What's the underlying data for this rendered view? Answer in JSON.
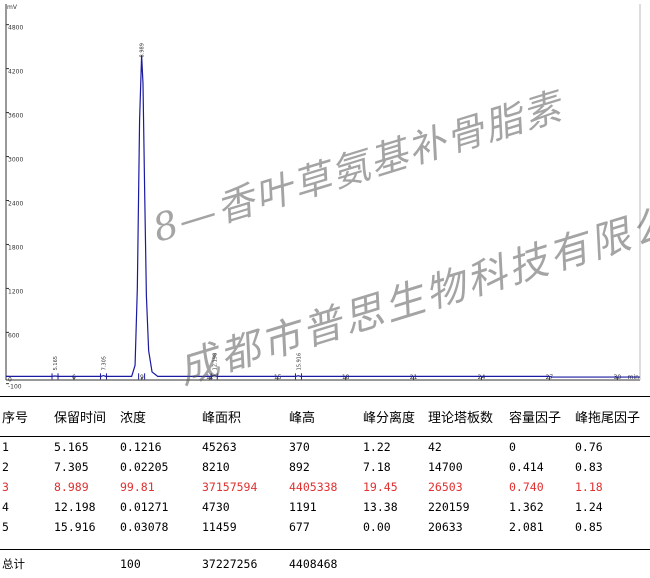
{
  "chart_data": {
    "type": "line",
    "title": "",
    "ylabel": "mV",
    "xlabel": "min",
    "xlim": [
      3,
      31
    ],
    "ylim": [
      -50,
      5000
    ],
    "x_ticks": [
      "6",
      "9",
      "12",
      "15",
      "18",
      "21",
      "24",
      "27",
      "30"
    ],
    "y_ticks": [
      "-100",
      "0",
      "600",
      "1200",
      "1800",
      "2400",
      "3000",
      "3600",
      "4200",
      "4800"
    ],
    "y_tick_values": [
      -100,
      0,
      600,
      1200,
      1800,
      2400,
      3000,
      3600,
      4200,
      4800
    ],
    "peaks": [
      {
        "label": "5.165",
        "rt": 5.165,
        "height": 370
      },
      {
        "label": "7.305",
        "rt": 7.305,
        "height": 892
      },
      {
        "label": "8.989",
        "rt": 8.989,
        "height": 4405338
      },
      {
        "label": "12.198",
        "rt": 12.198,
        "height": 1191
      },
      {
        "label": "15.916",
        "rt": 15.916,
        "height": 677
      }
    ],
    "series": [
      {
        "x": [
          3.0,
          5.0,
          5.165,
          5.3,
          7.2,
          7.305,
          7.4,
          8.55,
          8.7,
          8.8,
          8.9,
          8.989,
          9.05,
          9.12,
          9.2,
          9.3,
          9.45,
          9.7,
          12.1,
          12.198,
          12.3,
          15.8,
          15.916,
          16.0,
          27.0,
          27.1,
          31.0
        ],
        "y": [
          0,
          0,
          5,
          0,
          0,
          10,
          0,
          0,
          150,
          1200,
          3500,
          4380,
          4000,
          2600,
          1100,
          350,
          60,
          0,
          0,
          15,
          0,
          0,
          8,
          0,
          0,
          -10,
          -10
        ]
      }
    ],
    "grid": false,
    "legend": "none"
  },
  "table": {
    "headers": [
      "序号",
      "保留时间",
      "浓度",
      "峰面积",
      "峰高",
      "峰分离度",
      "理论塔板数",
      "容量因子",
      "峰拖尾因子"
    ],
    "rows": [
      [
        "1",
        "5.165",
        "0.1216",
        "45263",
        "370",
        "1.22",
        "42",
        "0",
        "0.76"
      ],
      [
        "2",
        "7.305",
        "0.02205",
        "8210",
        "892",
        "7.18",
        "14700",
        "0.414",
        "0.83"
      ],
      [
        "3",
        "8.989",
        "99.81",
        "37157594",
        "4405338",
        "19.45",
        "26503",
        "0.740",
        "1.18"
      ],
      [
        "4",
        "12.198",
        "0.01271",
        "4730",
        "1191",
        "13.38",
        "220159",
        "1.362",
        "1.24"
      ],
      [
        "5",
        "15.916",
        "0.03078",
        "11459",
        "677",
        "0.00",
        "20633",
        "2.081",
        "0.85"
      ]
    ],
    "highlight_row": 2,
    "highlight_color": "#e03030",
    "total": [
      "总计",
      "",
      "100",
      "37227256",
      "4408468",
      "",
      "",
      "",
      ""
    ]
  },
  "watermark": {
    "line1": "8—香叶草氨基补骨脂素",
    "line2": "成都市普思生物科技有限公司"
  },
  "colors": {
    "trace": "#1a1aa0",
    "baseline": "#1a1aa0",
    "axis": "#333333"
  }
}
